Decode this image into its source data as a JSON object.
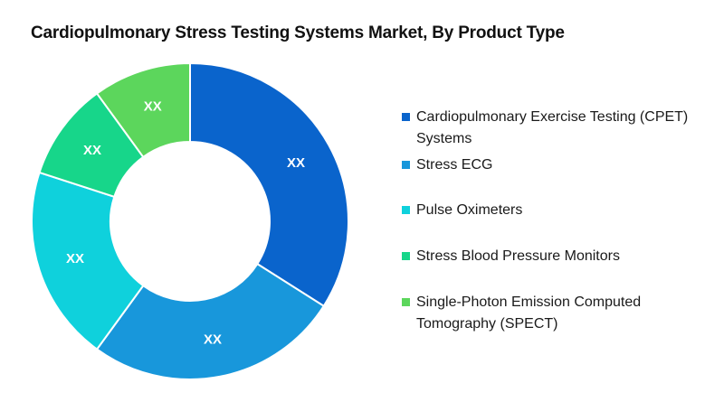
{
  "chart_data": {
    "type": "pie",
    "variant": "donut",
    "title": "Cardiopulmonary Stress Testing Systems Market, By Product Type",
    "categories": [
      "Cardiopulmonary Exercise Testing (CPET) Systems",
      "Stress ECG",
      "Pulse Oximeters",
      "Stress Blood Pressure Monitors",
      "Single-Photon Emission Computed Tomography (SPECT)"
    ],
    "values": [
      34,
      26,
      20,
      10,
      10
    ],
    "data_labels": [
      "XX",
      "XX",
      "XX",
      "XX",
      "XX"
    ],
    "colors": [
      "#0a64cc",
      "#1897db",
      "#0fd1dc",
      "#17d68a",
      "#5cd65c"
    ],
    "label_color": "#ffffff",
    "legend_position": "right",
    "start_angle": "12 o'clock",
    "direction": "clockwise"
  }
}
